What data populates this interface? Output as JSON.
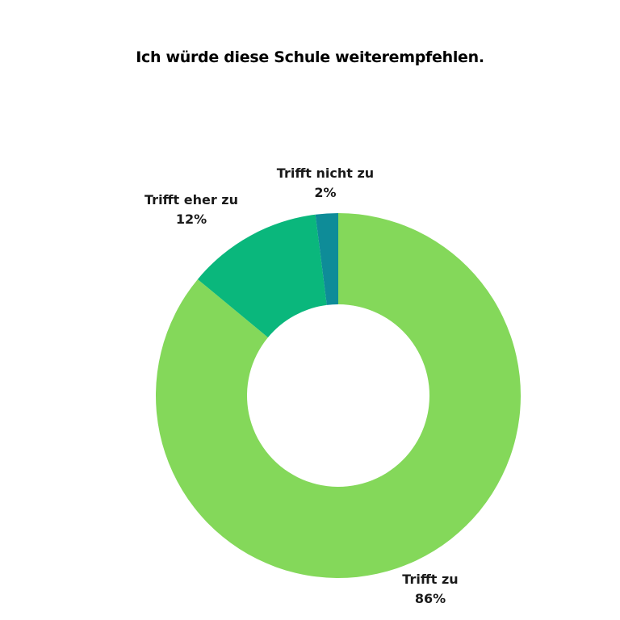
{
  "chart_data": {
    "type": "pie",
    "title": "Ich würde diese Schule weiterempfehlen.",
    "donut": true,
    "categories": [
      "Trifft zu",
      "Trifft eher zu",
      "Trifft nicht zu"
    ],
    "values": [
      86,
      12,
      2
    ],
    "value_labels": [
      "86%",
      "12%",
      "2%"
    ],
    "colors": [
      "#84d85a",
      "#0ab77c",
      "#0e8c98"
    ],
    "start": "12 o'clock",
    "direction": "clockwise"
  }
}
